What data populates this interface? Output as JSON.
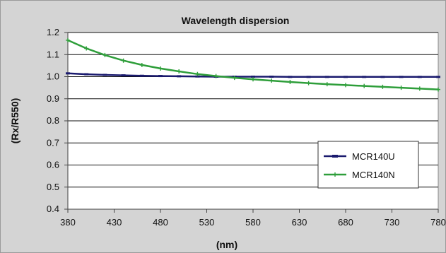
{
  "chart_data": {
    "type": "line",
    "title": "Wavelength dispersion",
    "xlabel": "(nm)",
    "ylabel": "(Rx/R550)",
    "xlim": [
      380,
      780
    ],
    "ylim": [
      0.4,
      1.2
    ],
    "x_ticks": [
      380,
      430,
      480,
      530,
      580,
      630,
      680,
      730,
      780
    ],
    "y_ticks": [
      0.4,
      0.5,
      0.6,
      0.7,
      0.8,
      0.9,
      1.0,
      1.1,
      1.2
    ],
    "y_tick_labels": [
      "0.4",
      "0.5",
      "0.6",
      "0.7",
      "0.8",
      "0.9",
      "1.0",
      "1.1",
      "1.2"
    ],
    "grid": "horizontal",
    "legend_position": "bottom-right",
    "series": [
      {
        "name": "MCR140U",
        "color": "#1a1a6e",
        "marker": "dash",
        "x": [
          380,
          400,
          420,
          440,
          460,
          480,
          500,
          520,
          540,
          560,
          580,
          600,
          620,
          640,
          660,
          680,
          700,
          720,
          740,
          760,
          780
        ],
        "values": [
          1.015,
          1.011,
          1.008,
          1.006,
          1.004,
          1.003,
          1.002,
          1.001,
          1.0,
          1.0,
          1.0,
          1.0,
          0.999,
          0.999,
          0.999,
          0.999,
          0.999,
          0.999,
          0.999,
          0.999,
          0.999
        ]
      },
      {
        "name": "MCR140N",
        "color": "#2e9e3a",
        "marker": "plus",
        "x": [
          380,
          400,
          420,
          440,
          460,
          480,
          500,
          520,
          540,
          560,
          580,
          600,
          620,
          640,
          660,
          680,
          700,
          720,
          740,
          760,
          780
        ],
        "values": [
          1.165,
          1.128,
          1.098,
          1.073,
          1.053,
          1.037,
          1.024,
          1.012,
          1.003,
          0.995,
          0.988,
          0.982,
          0.976,
          0.971,
          0.966,
          0.962,
          0.958,
          0.954,
          0.95,
          0.946,
          0.942
        ]
      }
    ]
  }
}
